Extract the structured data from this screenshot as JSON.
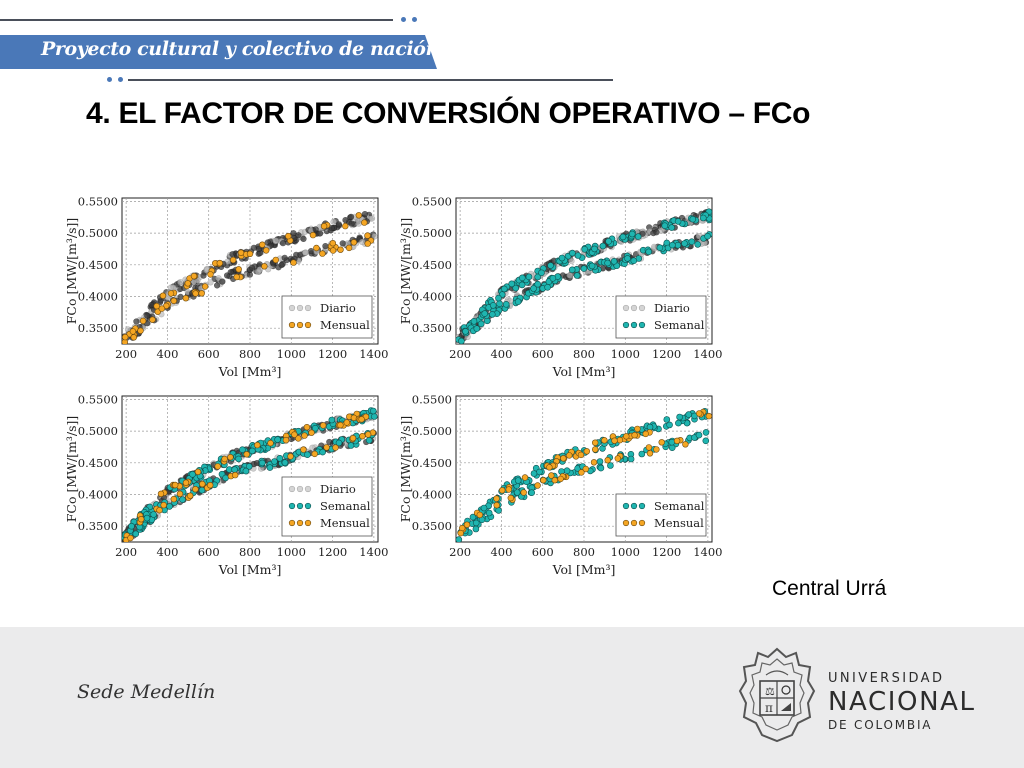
{
  "header": {
    "banner_text": "Proyecto cultural y colectivo de nación",
    "title": "4. EL FACTOR DE CONVERSIÓN OPERATIVO – FCo"
  },
  "caption": "Central Urrá",
  "footer": {
    "sede": "Sede Medellín",
    "university_line1": "UNIVERSIDAD",
    "university_line2": "NACIONAL",
    "university_line3": "DE COLOMBIA"
  },
  "colors": {
    "banner": "#4a78b8",
    "diario": "#bdbdbd",
    "diario_dense": "#3a3a3a",
    "mensual": "#f5a623",
    "semanal": "#1fb5b0",
    "footer_bg": "#ebebec"
  },
  "chart_data": [
    {
      "type": "scatter",
      "xlabel": "Vol [Mm³]",
      "ylabel": "FCo [MW/[m³/s]]",
      "xlim": [
        180,
        1420
      ],
      "ylim": [
        0.325,
        0.5555
      ],
      "xticks": [
        200,
        400,
        600,
        800,
        1000,
        1200,
        1400
      ],
      "yticks": [
        "0.3500",
        "0.4000",
        "0.4500",
        "0.5000",
        "0.5500"
      ],
      "grid": true,
      "legend_position": "lower-right",
      "series": [
        {
          "name": "Diario",
          "color": "#bdbdbd",
          "trend": {
            "upper": [
              [
                180,
                0.333
              ],
              [
                400,
                0.405
              ],
              [
                700,
                0.458
              ],
              [
                1000,
                0.492
              ],
              [
                1200,
                0.512
              ],
              [
                1400,
                0.527
              ]
            ],
            "lower": [
              [
                180,
                0.327
              ],
              [
                400,
                0.385
              ],
              [
                700,
                0.433
              ],
              [
                1000,
                0.458
              ],
              [
                1200,
                0.478
              ],
              [
                1400,
                0.492
              ]
            ]
          }
        },
        {
          "name": "Mensual",
          "color": "#f5a623",
          "trend": {
            "upper": [
              [
                180,
                0.333
              ],
              [
                400,
                0.405
              ],
              [
                700,
                0.458
              ],
              [
                1000,
                0.492
              ],
              [
                1200,
                0.512
              ],
              [
                1400,
                0.527
              ]
            ],
            "lower": [
              [
                180,
                0.327
              ],
              [
                400,
                0.385
              ],
              [
                700,
                0.433
              ],
              [
                1000,
                0.458
              ],
              [
                1200,
                0.478
              ],
              [
                1400,
                0.492
              ]
            ]
          }
        }
      ]
    },
    {
      "type": "scatter",
      "xlabel": "Vol [Mm³]",
      "ylabel": "FCo [MW/[m³/s]]",
      "xlim": [
        180,
        1420
      ],
      "ylim": [
        0.325,
        0.5555
      ],
      "xticks": [
        200,
        400,
        600,
        800,
        1000,
        1200,
        1400
      ],
      "yticks": [
        "0.3500",
        "0.4000",
        "0.4500",
        "0.5000",
        "0.5500"
      ],
      "grid": true,
      "legend_position": "lower-right",
      "series": [
        {
          "name": "Diario",
          "color": "#bdbdbd",
          "trend": {
            "upper": [
              [
                180,
                0.333
              ],
              [
                400,
                0.405
              ],
              [
                700,
                0.458
              ],
              [
                1000,
                0.492
              ],
              [
                1200,
                0.512
              ],
              [
                1400,
                0.527
              ]
            ],
            "lower": [
              [
                180,
                0.327
              ],
              [
                400,
                0.385
              ],
              [
                700,
                0.433
              ],
              [
                1000,
                0.458
              ],
              [
                1200,
                0.478
              ],
              [
                1400,
                0.492
              ]
            ]
          }
        },
        {
          "name": "Semanal",
          "color": "#1fb5b0",
          "trend": {
            "upper": [
              [
                180,
                0.333
              ],
              [
                400,
                0.405
              ],
              [
                700,
                0.458
              ],
              [
                1000,
                0.492
              ],
              [
                1200,
                0.512
              ],
              [
                1400,
                0.527
              ]
            ],
            "lower": [
              [
                180,
                0.327
              ],
              [
                400,
                0.385
              ],
              [
                700,
                0.433
              ],
              [
                1000,
                0.458
              ],
              [
                1200,
                0.478
              ],
              [
                1400,
                0.492
              ]
            ]
          }
        }
      ]
    },
    {
      "type": "scatter",
      "xlabel": "Vol [Mm³]",
      "ylabel": "FCo [MW/[m³/s]]",
      "xlim": [
        180,
        1420
      ],
      "ylim": [
        0.325,
        0.5555
      ],
      "xticks": [
        200,
        400,
        600,
        800,
        1000,
        1200,
        1400
      ],
      "yticks": [
        "0.3500",
        "0.4000",
        "0.4500",
        "0.5000",
        "0.5500"
      ],
      "grid": true,
      "legend_position": "lower-right",
      "series": [
        {
          "name": "Diario",
          "color": "#bdbdbd",
          "trend": {
            "upper": [
              [
                180,
                0.333
              ],
              [
                400,
                0.405
              ],
              [
                700,
                0.458
              ],
              [
                1000,
                0.492
              ],
              [
                1200,
                0.512
              ],
              [
                1400,
                0.527
              ]
            ],
            "lower": [
              [
                180,
                0.327
              ],
              [
                400,
                0.385
              ],
              [
                700,
                0.433
              ],
              [
                1000,
                0.458
              ],
              [
                1200,
                0.478
              ],
              [
                1400,
                0.492
              ]
            ]
          }
        },
        {
          "name": "Semanal",
          "color": "#1fb5b0",
          "trend": {
            "upper": [
              [
                180,
                0.333
              ],
              [
                400,
                0.405
              ],
              [
                700,
                0.458
              ],
              [
                1000,
                0.492
              ],
              [
                1200,
                0.512
              ],
              [
                1400,
                0.527
              ]
            ],
            "lower": [
              [
                180,
                0.327
              ],
              [
                400,
                0.385
              ],
              [
                700,
                0.433
              ],
              [
                1000,
                0.458
              ],
              [
                1200,
                0.478
              ],
              [
                1400,
                0.492
              ]
            ]
          }
        },
        {
          "name": "Mensual",
          "color": "#f5a623",
          "trend": {
            "upper": [
              [
                180,
                0.333
              ],
              [
                400,
                0.405
              ],
              [
                700,
                0.458
              ],
              [
                1000,
                0.492
              ],
              [
                1200,
                0.512
              ],
              [
                1400,
                0.527
              ]
            ],
            "lower": [
              [
                180,
                0.327
              ],
              [
                400,
                0.385
              ],
              [
                700,
                0.433
              ],
              [
                1000,
                0.458
              ],
              [
                1200,
                0.478
              ],
              [
                1400,
                0.492
              ]
            ]
          }
        }
      ]
    },
    {
      "type": "scatter",
      "xlabel": "Vol [Mm³]",
      "ylabel": "FCo [MW/[m³/s]]",
      "xlim": [
        180,
        1420
      ],
      "ylim": [
        0.325,
        0.5555
      ],
      "xticks": [
        200,
        400,
        600,
        800,
        1000,
        1200,
        1400
      ],
      "yticks": [
        "0.3500",
        "0.4000",
        "0.4500",
        "0.5000",
        "0.5500"
      ],
      "grid": true,
      "legend_position": "lower-right",
      "series": [
        {
          "name": "Semanal",
          "color": "#1fb5b0",
          "trend": {
            "upper": [
              [
                180,
                0.333
              ],
              [
                400,
                0.405
              ],
              [
                700,
                0.458
              ],
              [
                1000,
                0.492
              ],
              [
                1200,
                0.512
              ],
              [
                1400,
                0.527
              ]
            ],
            "lower": [
              [
                180,
                0.327
              ],
              [
                400,
                0.385
              ],
              [
                700,
                0.433
              ],
              [
                1000,
                0.458
              ],
              [
                1200,
                0.478
              ],
              [
                1400,
                0.492
              ]
            ]
          }
        },
        {
          "name": "Mensual",
          "color": "#f5a623",
          "trend": {
            "upper": [
              [
                180,
                0.333
              ],
              [
                400,
                0.405
              ],
              [
                700,
                0.458
              ],
              [
                1000,
                0.492
              ],
              [
                1200,
                0.512
              ],
              [
                1400,
                0.527
              ]
            ],
            "lower": [
              [
                180,
                0.327
              ],
              [
                400,
                0.385
              ],
              [
                700,
                0.433
              ],
              [
                1000,
                0.458
              ],
              [
                1200,
                0.478
              ],
              [
                1400,
                0.492
              ]
            ]
          }
        }
      ]
    }
  ]
}
